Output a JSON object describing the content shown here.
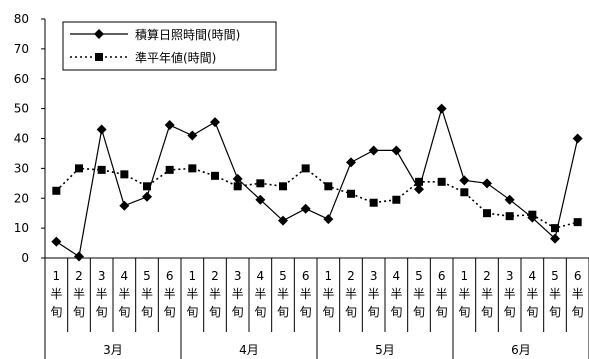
{
  "chart_data": {
    "type": "line",
    "ylim": [
      0,
      80
    ],
    "yticks": [
      0,
      10,
      20,
      30,
      40,
      50,
      60,
      70,
      80
    ],
    "categories": [
      [
        "1",
        "半",
        "旬"
      ],
      [
        "2",
        "半",
        "旬"
      ],
      [
        "3",
        "半",
        "旬"
      ],
      [
        "4",
        "半",
        "旬"
      ],
      [
        "5",
        "半",
        "旬"
      ],
      [
        "6",
        "半",
        "旬"
      ],
      [
        "1",
        "半",
        "旬"
      ],
      [
        "2",
        "半",
        "旬"
      ],
      [
        "3",
        "半",
        "旬"
      ],
      [
        "4",
        "半",
        "旬"
      ],
      [
        "5",
        "半",
        "旬"
      ],
      [
        "6",
        "半",
        "旬"
      ],
      [
        "1",
        "半",
        "旬"
      ],
      [
        "2",
        "半",
        "旬"
      ],
      [
        "3",
        "半",
        "旬"
      ],
      [
        "4",
        "半",
        "旬"
      ],
      [
        "5",
        "半",
        "旬"
      ],
      [
        "6",
        "半",
        "旬"
      ],
      [
        "1",
        "半",
        "旬"
      ],
      [
        "2",
        "半",
        "旬"
      ],
      [
        "3",
        "半",
        "旬"
      ],
      [
        "4",
        "半",
        "旬"
      ],
      [
        "5",
        "半",
        "旬"
      ],
      [
        "6",
        "半",
        "旬"
      ]
    ],
    "months": [
      "3月",
      "4月",
      "5月",
      "6月"
    ],
    "series": [
      {
        "name": "積算日照時間(時間)",
        "marker": "diamond",
        "line": "solid",
        "color": "#000000",
        "values": [
          5.5,
          0.5,
          43,
          17.5,
          20.5,
          44.5,
          41,
          45.5,
          26.5,
          19.5,
          12.5,
          16.5,
          13,
          32,
          36,
          36,
          23,
          50,
          26,
          25,
          19.5,
          13.5,
          6.5,
          40
        ]
      },
      {
        "name": "準平年値(時間)",
        "marker": "square",
        "line": "dotted",
        "color": "#000000",
        "values": [
          22.5,
          30,
          29.5,
          28,
          24,
          29.5,
          30,
          27.5,
          24,
          25,
          24,
          30,
          24,
          21.5,
          18.5,
          19.5,
          25.5,
          25.5,
          22,
          15,
          14,
          14.5,
          10,
          12
        ]
      }
    ],
    "grid": false,
    "legend_position": "top-left"
  }
}
